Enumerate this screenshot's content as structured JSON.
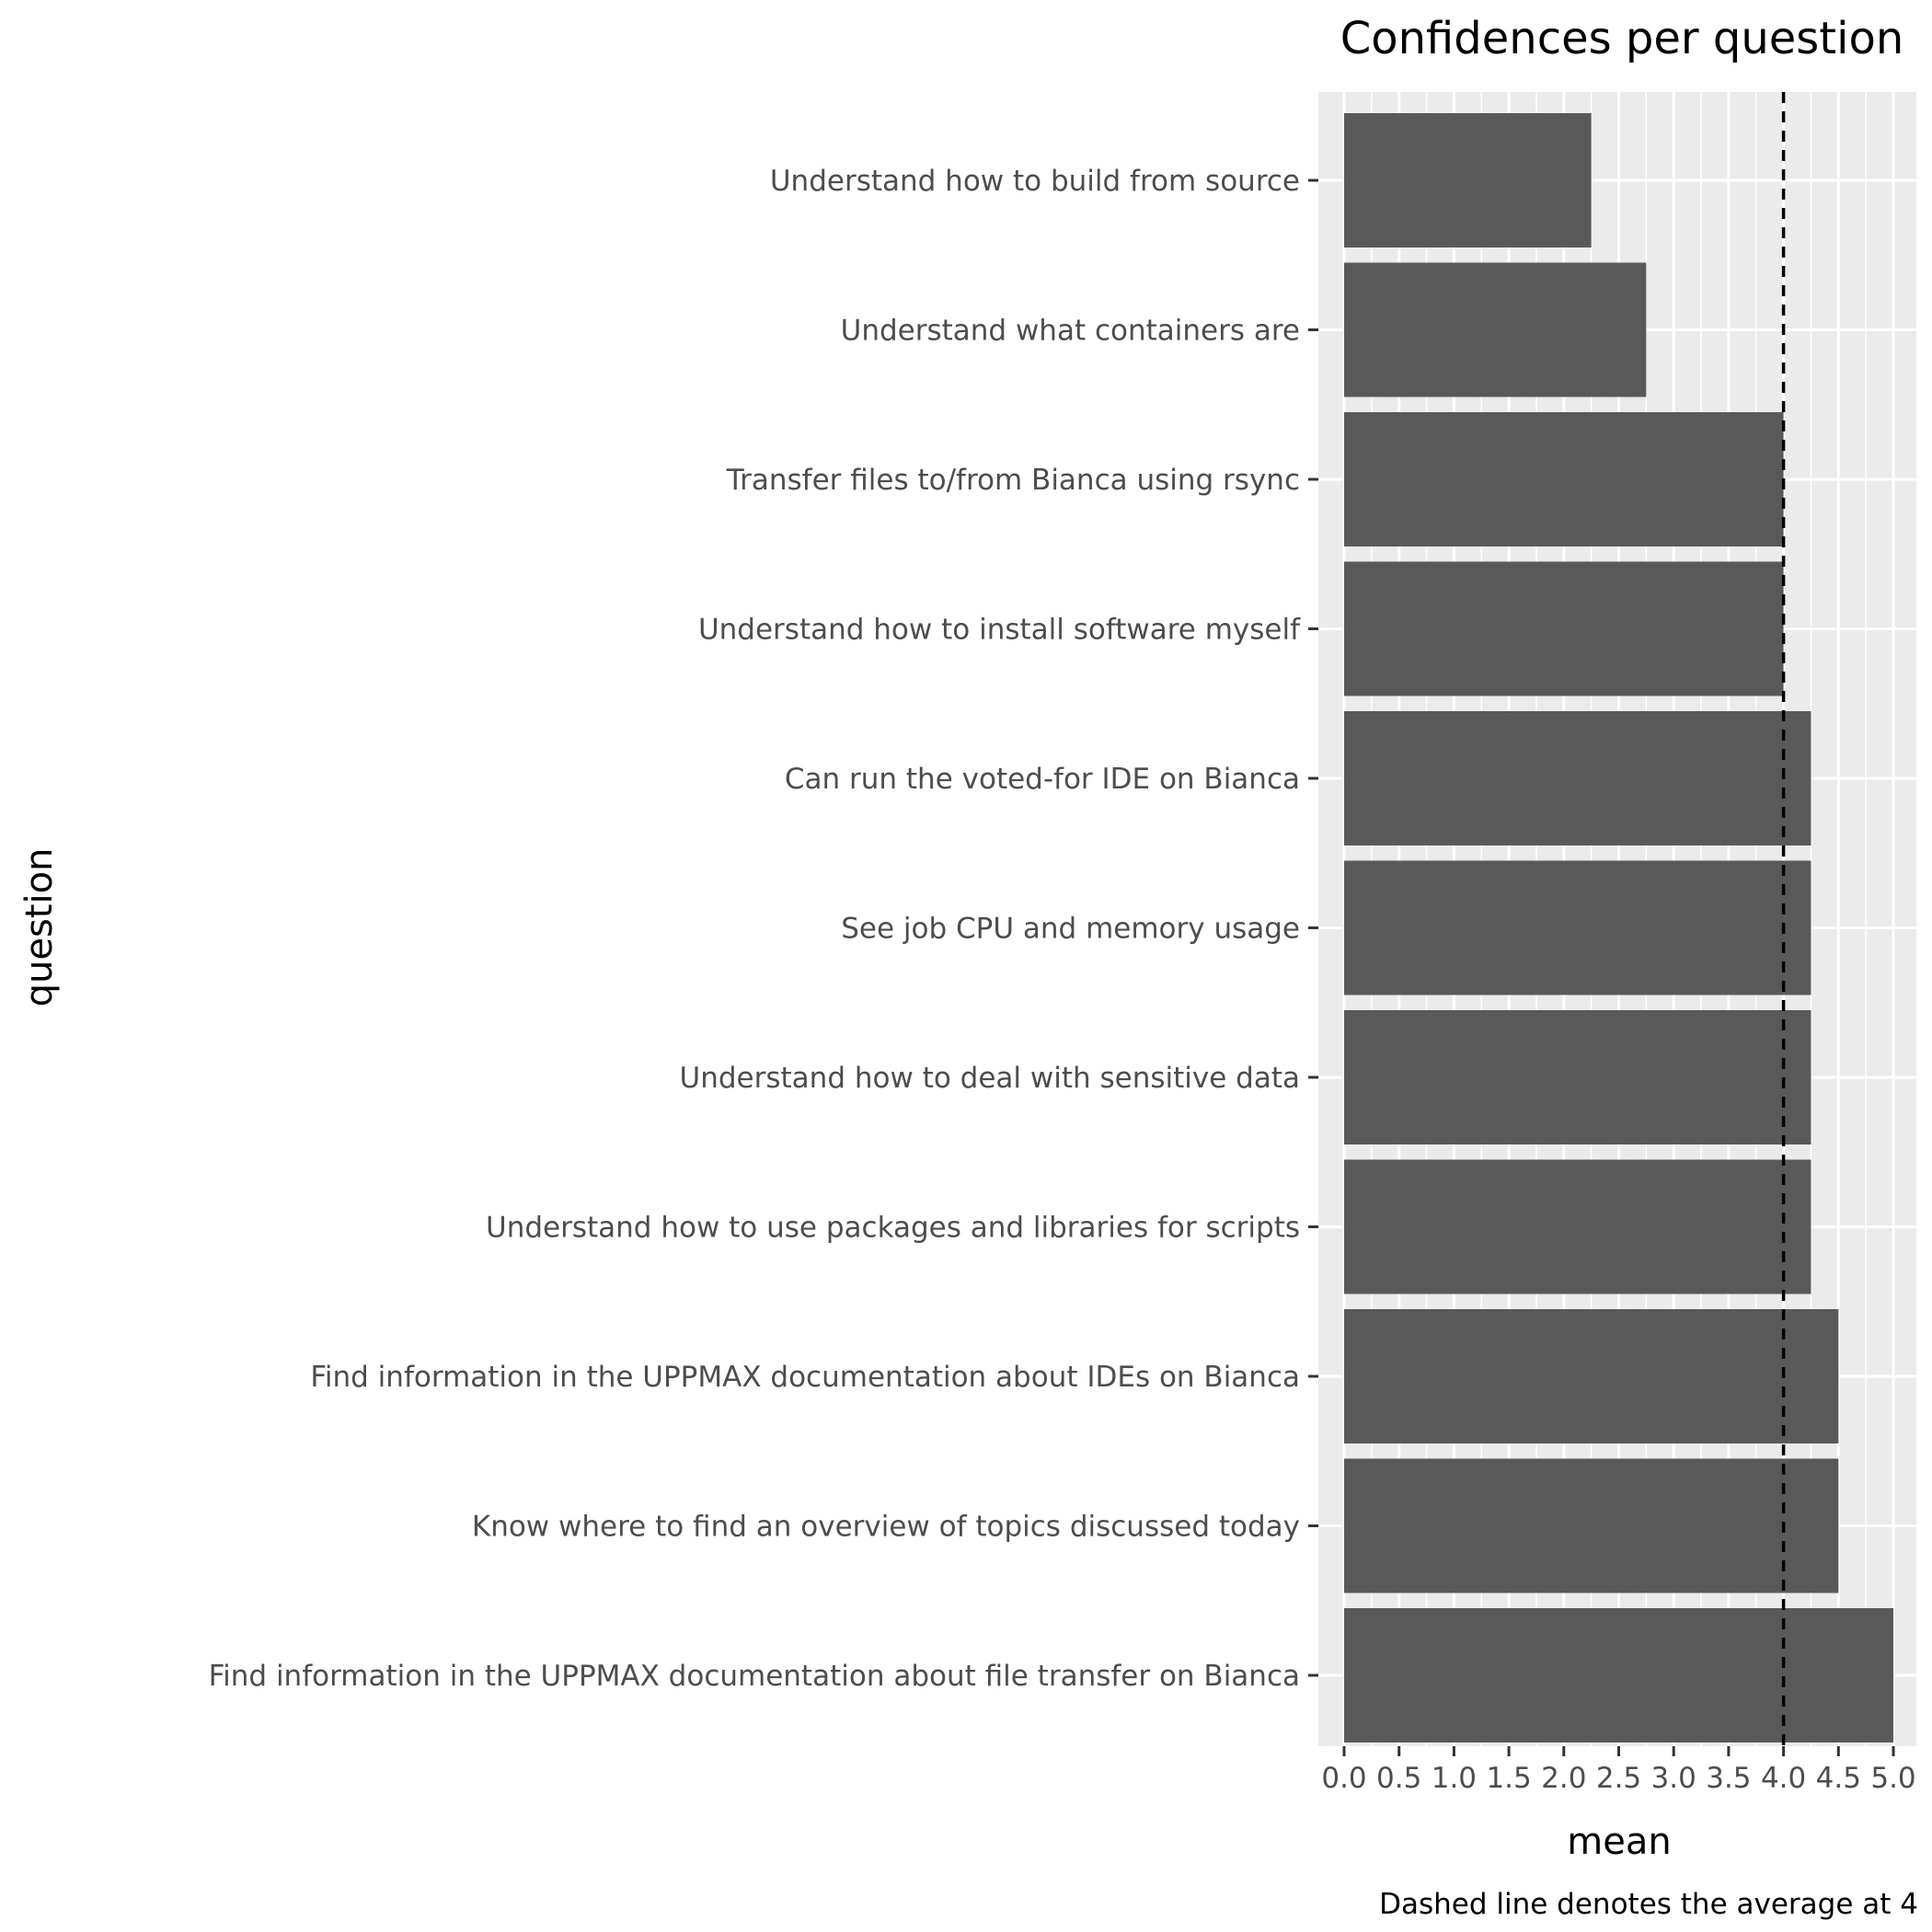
{
  "chart_data": {
    "type": "bar",
    "orientation": "horizontal",
    "title": "Confidences per question",
    "xlabel": "mean",
    "ylabel": "question",
    "caption": "Dashed line denotes the average at 4",
    "xlim": [
      0,
      5
    ],
    "x_ticks": [
      "0.0",
      "0.5",
      "1.0",
      "1.5",
      "2.0",
      "2.5",
      "3.0",
      "3.5",
      "4.0",
      "4.5",
      "5.0"
    ],
    "reference_line": {
      "value": 4,
      "style": "dashed"
    },
    "grid": true,
    "categories": [
      "Understand how to build from source",
      "Understand what containers are",
      "Transfer files to/from Bianca using rsync",
      "Understand how to install software myself",
      "Can run the voted-for IDE on Bianca",
      "See job CPU and memory usage",
      "Understand how to deal with sensitive data",
      "Understand how to use packages and libraries for scripts",
      "Find information in the UPPMAX documentation about IDEs on Bianca",
      "Know where to find an overview of topics discussed today",
      "Find information in the UPPMAX documentation about file transfer on Bianca"
    ],
    "values": [
      2.25,
      2.75,
      4.0,
      4.0,
      4.25,
      4.25,
      4.25,
      4.25,
      4.5,
      4.5,
      5.0
    ],
    "colors": {
      "bar": "#595959",
      "panel": "#ebebeb",
      "grid": "#ffffff",
      "reference_line": "#000000",
      "tick_text": "#4d4d4d",
      "tick_mark": "#333333"
    }
  }
}
